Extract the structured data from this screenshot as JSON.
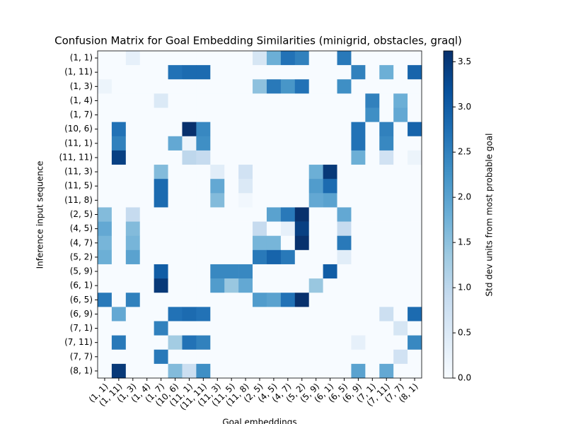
{
  "chart_data": {
    "type": "heatmap",
    "title": "Confusion Matrix for Goal Embedding Similarities (minigrid, obstacles, graql)",
    "xlabel": "Goal embeddings",
    "ylabel": "Inference input sequence",
    "colorbar_label": "Std dev units from most probable goal",
    "colormap": "Blues",
    "x_categories": [
      "(1, 1)",
      "(1, 11)",
      "(1, 3)",
      "(1, 4)",
      "(1, 7)",
      "(10, 6)",
      "(11, 1)",
      "(11, 11)",
      "(11, 3)",
      "(11, 5)",
      "(11, 8)",
      "(2, 5)",
      "(4, 5)",
      "(4, 7)",
      "(5, 2)",
      "(5, 9)",
      "(6, 1)",
      "(6, 5)",
      "(6, 9)",
      "(7, 1)",
      "(7, 11)",
      "(7, 7)",
      "(8, 1)"
    ],
    "y_categories": [
      "(1, 1)",
      "(1, 11)",
      "(1, 3)",
      "(1, 4)",
      "(1, 7)",
      "(10, 6)",
      "(11, 1)",
      "(11, 11)",
      "(11, 3)",
      "(11, 5)",
      "(11, 8)",
      "(2, 5)",
      "(4, 5)",
      "(4, 7)",
      "(5, 2)",
      "(5, 9)",
      "(6, 1)",
      "(6, 5)",
      "(6, 9)",
      "(7, 1)",
      "(7, 11)",
      "(7, 7)",
      "(8, 1)"
    ],
    "z": [
      [
        0,
        0,
        0.3,
        0,
        0,
        0,
        0,
        0,
        0,
        0,
        0,
        0.6,
        1.8,
        2.7,
        2.5,
        0,
        0,
        2.6,
        0,
        0,
        0,
        0,
        0
      ],
      [
        0,
        0,
        0,
        0,
        0,
        2.7,
        2.8,
        2.8,
        0,
        0,
        0,
        0,
        0,
        0,
        0,
        0,
        0,
        0,
        2.5,
        0,
        1.8,
        0,
        2.9
      ],
      [
        0.2,
        0,
        0,
        0,
        0,
        0,
        0,
        0,
        0,
        0,
        0,
        1.5,
        2.6,
        2.2,
        2.7,
        0,
        0,
        2.3,
        0,
        0,
        0,
        0,
        0
      ],
      [
        0,
        0,
        0,
        0,
        0.5,
        0,
        0,
        0,
        0,
        0,
        0,
        0,
        0,
        0,
        0,
        0,
        0,
        0,
        0,
        2.5,
        0,
        1.8,
        0
      ],
      [
        0,
        0,
        0,
        0,
        0,
        0,
        0,
        0,
        0,
        0,
        0,
        0,
        0,
        0,
        0,
        0,
        0,
        0,
        0,
        2.3,
        0,
        1.9,
        0
      ],
      [
        0,
        2.7,
        0,
        0,
        0,
        0,
        3.6,
        2.4,
        0,
        0,
        0,
        0,
        0,
        0,
        0,
        0,
        0,
        0,
        2.7,
        0,
        2.5,
        0,
        2.9
      ],
      [
        0,
        2.5,
        0,
        0,
        0,
        1.9,
        0.2,
        2.3,
        0,
        0,
        0,
        0,
        0,
        0,
        0,
        0,
        0,
        0,
        2.7,
        0,
        2.4,
        0,
        0
      ],
      [
        0,
        3.4,
        0,
        0,
        0,
        0,
        1.0,
        0.9,
        0,
        0,
        0,
        0,
        0,
        0,
        0,
        0,
        0,
        0,
        1.8,
        0,
        0.7,
        0,
        0.2
      ],
      [
        0,
        0,
        0,
        0,
        1.6,
        0,
        0,
        0,
        0.4,
        0,
        0.7,
        0,
        0,
        0,
        0,
        1.8,
        3.5,
        0,
        0,
        0,
        0,
        0,
        0
      ],
      [
        0,
        0,
        0,
        0,
        2.8,
        0,
        0,
        0,
        1.9,
        0,
        0.5,
        0,
        0,
        0,
        0,
        2.1,
        2.8,
        0,
        0,
        0,
        0,
        0,
        0
      ],
      [
        0,
        0,
        0,
        0,
        2.8,
        0,
        0,
        0,
        1.6,
        0,
        0.1,
        0,
        0,
        0,
        0,
        1.9,
        2.0,
        0,
        0,
        0,
        0,
        0,
        0
      ],
      [
        1.6,
        0,
        0.9,
        0,
        0,
        0,
        0,
        0,
        0,
        0,
        0,
        0,
        2.0,
        2.6,
        3.6,
        0,
        0,
        1.9,
        0,
        0,
        0,
        0,
        0
      ],
      [
        1.9,
        0,
        1.6,
        0,
        0,
        0,
        0,
        0,
        0,
        0,
        0,
        0.9,
        0,
        0.3,
        3.4,
        0,
        0,
        0.9,
        0,
        0,
        0,
        0,
        0
      ],
      [
        1.7,
        0,
        1.7,
        0,
        0,
        0,
        0,
        0,
        0,
        0,
        0,
        1.7,
        1.7,
        0,
        3.6,
        0,
        0,
        2.6,
        0,
        0,
        0,
        0,
        0
      ],
      [
        1.8,
        0,
        2.0,
        0,
        0,
        0,
        0,
        0,
        0,
        0,
        0,
        2.6,
        2.9,
        2.6,
        0,
        0,
        0,
        0.4,
        0,
        0,
        0,
        0,
        0
      ],
      [
        0,
        0,
        0,
        0,
        3.0,
        0,
        0,
        0,
        2.4,
        2.4,
        2.4,
        0,
        0,
        0,
        0,
        0,
        3.0,
        0,
        0,
        0,
        0,
        0,
        0
      ],
      [
        0,
        0,
        0,
        0,
        3.5,
        0,
        0,
        0,
        2.1,
        1.4,
        1.9,
        0,
        0,
        0,
        0,
        1.4,
        0,
        0,
        0,
        0,
        0,
        0,
        0
      ],
      [
        2.6,
        0,
        2.5,
        0,
        0,
        0,
        0,
        0,
        0,
        0,
        0,
        2.1,
        2.0,
        2.7,
        3.6,
        0,
        0,
        0,
        0,
        0,
        0,
        0,
        0
      ],
      [
        0,
        1.9,
        0,
        0,
        0,
        2.7,
        2.8,
        2.7,
        0,
        0,
        0,
        0,
        0,
        0,
        0,
        0,
        0,
        0,
        0,
        0,
        0.8,
        0,
        2.8
      ],
      [
        0,
        0,
        0,
        0,
        2.5,
        0,
        0,
        0,
        0,
        0,
        0,
        0,
        0,
        0,
        0,
        0,
        0,
        0,
        0,
        0,
        0,
        0.6,
        0
      ],
      [
        0,
        2.6,
        0,
        0,
        0,
        1.3,
        2.7,
        2.5,
        0,
        0,
        0,
        0,
        0,
        0,
        0,
        0,
        0,
        0,
        0.3,
        0,
        0,
        0,
        2.4
      ],
      [
        0,
        0,
        0,
        0,
        2.6,
        0,
        0,
        0,
        0,
        0,
        0,
        0,
        0,
        0,
        0,
        0,
        0,
        0,
        0,
        0,
        0,
        0.7,
        0
      ],
      [
        0,
        3.5,
        0,
        0,
        0,
        1.6,
        0.8,
        2.3,
        0,
        0,
        0,
        0,
        0,
        0,
        0,
        0,
        0,
        0,
        2.0,
        0,
        1.9,
        0,
        0
      ]
    ],
    "clim": [
      0,
      3.62
    ],
    "cticks": [
      {
        "value": 0,
        "label": "0.0"
      },
      0.5,
      {
        "value": 1,
        "label": "1.0"
      },
      1.5,
      {
        "value": 2,
        "label": "2.0"
      },
      2.5,
      {
        "value": 3,
        "label": "3.0"
      },
      3.5
    ]
  }
}
